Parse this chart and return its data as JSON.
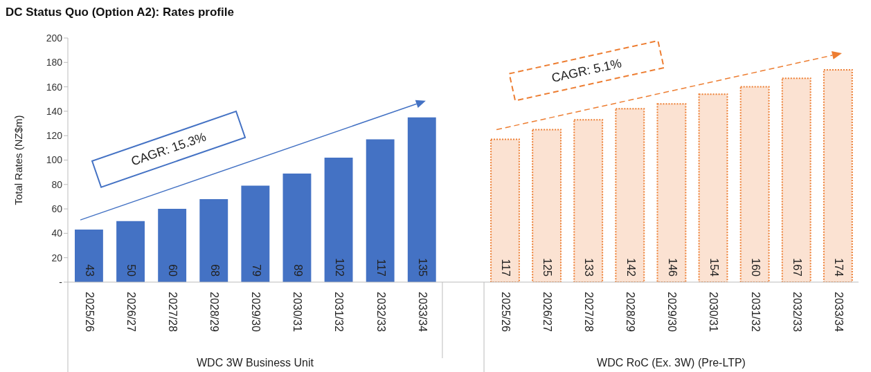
{
  "chart_data": {
    "type": "bar",
    "title": "DC Status Quo (Option A2): Rates profile",
    "ylabel": "Total Rates (NZ$m)",
    "categories": [
      "2025/26",
      "2026/27",
      "2027/28",
      "2028/29",
      "2029/30",
      "2030/31",
      "2031/32",
      "2032/33",
      "2033/34",
      null,
      "2025/26",
      "2026/27",
      "2027/28",
      "2028/29",
      "2029/30",
      "2030/31",
      "2031/32",
      "2032/33",
      "2033/34"
    ],
    "series": [
      {
        "color": "#4472c4",
        "line_style": "solid",
        "values": [
          43,
          50,
          60,
          68,
          79,
          89,
          102,
          117,
          135,
          null,
          null,
          null,
          null,
          null,
          null,
          null,
          null,
          null,
          null
        ]
      },
      {
        "color": "#ed7d31",
        "line_style": "dotted",
        "values": [
          null,
          null,
          null,
          null,
          null,
          null,
          null,
          null,
          null,
          null,
          117,
          125,
          133,
          142,
          146,
          154,
          160,
          167,
          174
        ]
      }
    ],
    "stacked": true,
    "ylim": [
      0,
      200
    ],
    "yticks": [
      {
        "value": 0,
        "label": "-"
      },
      20,
      40,
      60,
      80,
      100,
      120,
      140,
      160,
      180,
      200
    ],
    "data_labels": true,
    "annotations": [
      "WDC 3W Business Unit",
      "WDC RoC (Ex. 3W) (Pre-LTP)",
      "CAGR: 15.3%",
      "CAGR: 5.1%"
    ]
  }
}
